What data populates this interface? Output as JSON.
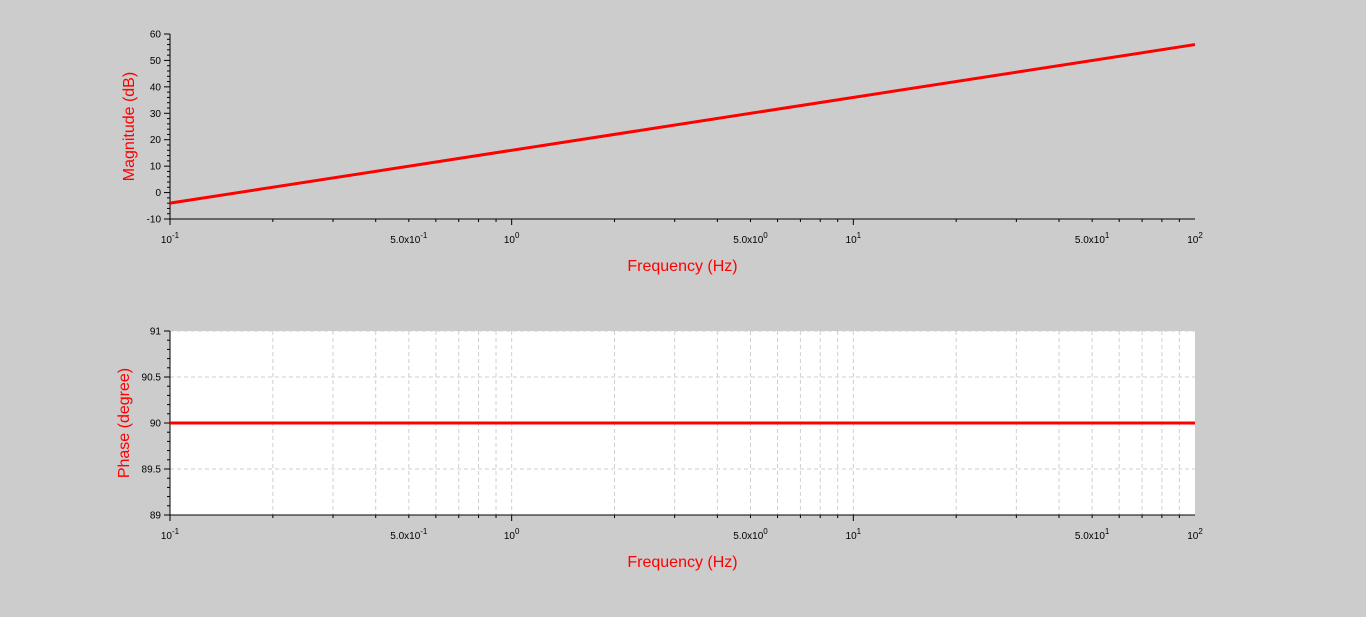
{
  "chart_data": [
    {
      "type": "line",
      "xlabel": "Frequency (Hz)",
      "ylabel": "Magnitude (dB)",
      "xscale": "log",
      "xlim": [
        0.1,
        100
      ],
      "ylim": [
        -10,
        60
      ],
      "yticks": [
        "-10",
        "0",
        "10",
        "20",
        "30",
        "40",
        "50",
        "60"
      ],
      "xticks": [
        {
          "base": "10",
          "exp": "-1"
        },
        {
          "base": "5.0x10",
          "exp": "-1"
        },
        {
          "base": "10",
          "exp": "0"
        },
        {
          "base": "5.0x10",
          "exp": "0"
        },
        {
          "base": "10",
          "exp": "1"
        },
        {
          "base": "5.0x10",
          "exp": "1"
        },
        {
          "base": "10",
          "exp": "2"
        }
      ],
      "grid": false,
      "plot_background": "#cccccc",
      "line_color": "#ff0000",
      "series": [
        {
          "x": [
            0.1,
            100
          ],
          "y": [
            -4,
            56
          ]
        }
      ]
    },
    {
      "type": "line",
      "xlabel": "Frequency (Hz)",
      "ylabel": "Phase (degree)",
      "xscale": "log",
      "xlim": [
        0.1,
        100
      ],
      "ylim": [
        89,
        91
      ],
      "yticks": [
        "89",
        "89.5",
        "90",
        "90.5",
        "91"
      ],
      "xticks": [
        {
          "base": "10",
          "exp": "-1"
        },
        {
          "base": "5.0x10",
          "exp": "-1"
        },
        {
          "base": "10",
          "exp": "0"
        },
        {
          "base": "5.0x10",
          "exp": "0"
        },
        {
          "base": "10",
          "exp": "1"
        },
        {
          "base": "5.0x10",
          "exp": "1"
        },
        {
          "base": "10",
          "exp": "2"
        }
      ],
      "grid": true,
      "plot_background": "#ffffff",
      "line_color": "#ff0000",
      "series": [
        {
          "x": [
            0.1,
            100
          ],
          "y": [
            90,
            90
          ]
        }
      ]
    }
  ]
}
